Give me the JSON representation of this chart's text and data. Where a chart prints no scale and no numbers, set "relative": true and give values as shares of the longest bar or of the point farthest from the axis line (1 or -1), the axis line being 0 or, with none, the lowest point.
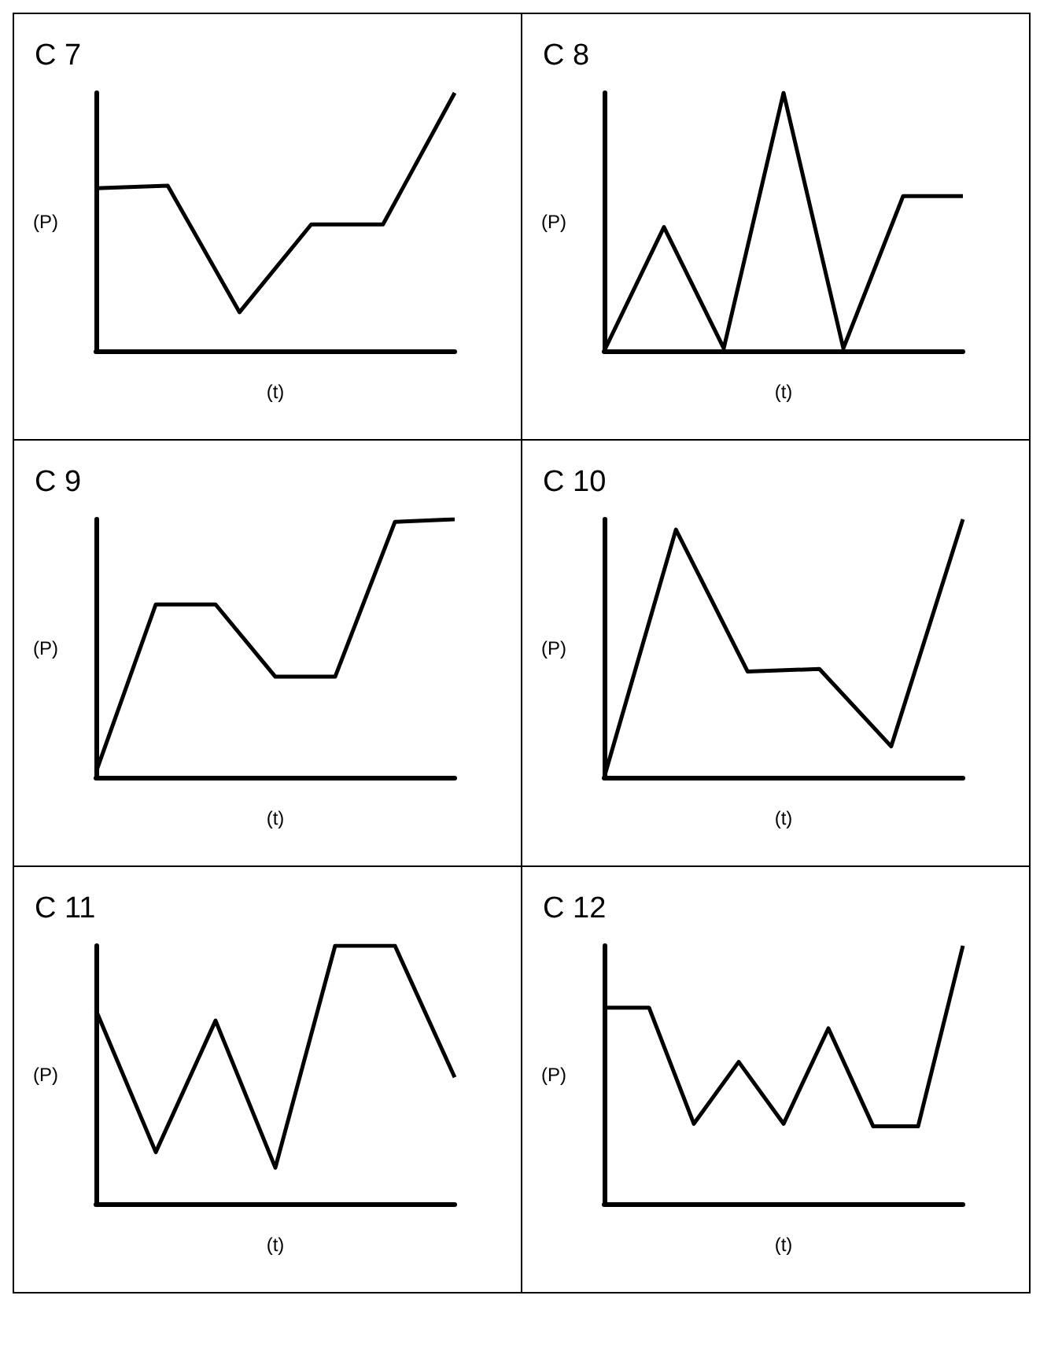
{
  "chart_data": [
    {
      "type": "line",
      "relative": true,
      "title": "C 7",
      "xlabel": "(t)",
      "ylabel": "(P)",
      "color": "#000000",
      "categories": [
        null,
        null,
        null,
        null,
        null,
        null
      ],
      "values": [
        0.63,
        0.64,
        0.15,
        0.49,
        0.49,
        1
      ]
    },
    {
      "type": "line",
      "relative": true,
      "title": "C 8",
      "xlabel": "(t)",
      "ylabel": "(P)",
      "color": "#000000",
      "categories": [
        null,
        null,
        null,
        null,
        null,
        null,
        null
      ],
      "values": [
        0,
        0.48,
        0.01,
        1,
        0.01,
        0.6,
        0.6
      ]
    },
    {
      "type": "line",
      "relative": true,
      "title": "C 9",
      "xlabel": "(t)",
      "ylabel": "(P)",
      "color": "#000000",
      "categories": [
        null,
        null,
        null,
        null,
        null,
        null,
        null
      ],
      "values": [
        0.02,
        0.67,
        0.67,
        0.39,
        0.39,
        0.99,
        1
      ]
    },
    {
      "type": "line",
      "relative": true,
      "title": "C 10",
      "xlabel": "(t)",
      "ylabel": "(P)",
      "color": "#000000",
      "categories": [
        null,
        null,
        null,
        null,
        null,
        null
      ],
      "values": [
        0,
        0.96,
        0.41,
        0.42,
        0.12,
        1
      ]
    },
    {
      "type": "line",
      "relative": true,
      "title": "C 11",
      "xlabel": "(t)",
      "ylabel": "(P)",
      "color": "#000000",
      "categories": [
        null,
        null,
        null,
        null,
        null,
        null,
        null
      ],
      "values": [
        0.75,
        0.2,
        0.71,
        0.14,
        1,
        1,
        0.49
      ]
    },
    {
      "type": "line",
      "relative": true,
      "title": "C 12",
      "xlabel": "(t)",
      "ylabel": "(P)",
      "color": "#000000",
      "categories": [
        null,
        null,
        null,
        null,
        null,
        null,
        null,
        null,
        null
      ],
      "values": [
        0.76,
        0.76,
        0.31,
        0.55,
        0.31,
        0.68,
        0.3,
        0.3,
        1
      ]
    }
  ]
}
